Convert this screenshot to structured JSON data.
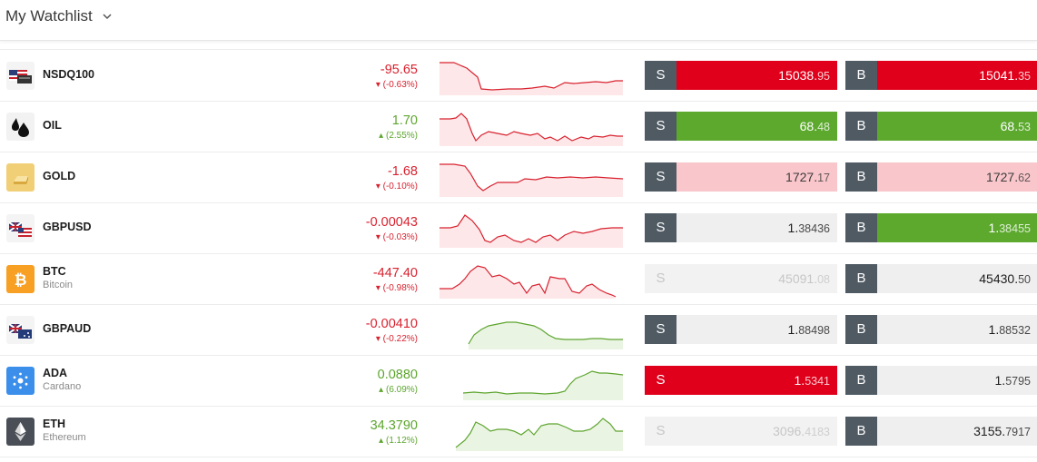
{
  "header": {
    "title": "My Watchlist"
  },
  "rows": [
    {
      "symbol": "NSDQ100",
      "full": "",
      "change": "-95.65",
      "pct": "(-0.63%)",
      "dir": "neg",
      "sell": {
        "label": "S",
        "big": "15038.",
        "small": "95"
      },
      "buy": {
        "label": "B",
        "big": "15041.",
        "small": "35"
      }
    },
    {
      "symbol": "OIL",
      "full": "",
      "change": "1.70",
      "pct": "(2.55%)",
      "dir": "pos",
      "sell": {
        "label": "S",
        "big": "68.",
        "small": "48"
      },
      "buy": {
        "label": "B",
        "big": "68.",
        "small": "53"
      }
    },
    {
      "symbol": "GOLD",
      "full": "",
      "change": "-1.68",
      "pct": "(-0.10%)",
      "dir": "neg",
      "sell": {
        "label": "S",
        "big": "1727.",
        "small": "17"
      },
      "buy": {
        "label": "B",
        "big": "1727.",
        "small": "62"
      }
    },
    {
      "symbol": "GBPUSD",
      "full": "",
      "change": "-0.00043",
      "pct": "(-0.03%)",
      "dir": "neg",
      "sell": {
        "label": "S",
        "big": "1.",
        "small": "38436"
      },
      "buy": {
        "label": "B",
        "big": "1.",
        "small": "38455"
      }
    },
    {
      "symbol": "BTC",
      "full": "Bitcoin",
      "change": "-447.40",
      "pct": "(-0.98%)",
      "dir": "neg",
      "sell": {
        "label": "S",
        "big": "45091.",
        "small": "08"
      },
      "buy": {
        "label": "B",
        "big": "45430.",
        "small": "50"
      }
    },
    {
      "symbol": "GBPAUD",
      "full": "",
      "change": "-0.00410",
      "pct": "(-0.22%)",
      "dir": "neg",
      "sell": {
        "label": "S",
        "big": "1.",
        "small": "88498"
      },
      "buy": {
        "label": "B",
        "big": "1.",
        "small": "88532"
      }
    },
    {
      "symbol": "ADA",
      "full": "Cardano",
      "change": "0.0880",
      "pct": "(6.09%)",
      "dir": "pos",
      "sell": {
        "label": "S",
        "big": "1.",
        "small": "5341"
      },
      "buy": {
        "label": "B",
        "big": "1.",
        "small": "5795"
      }
    },
    {
      "symbol": "ETH",
      "full": "Ethereum",
      "change": "34.3790",
      "pct": "(1.12%)",
      "dir": "pos",
      "sell": {
        "label": "S",
        "big": "3096.",
        "small": "4183"
      },
      "buy": {
        "label": "B",
        "big": "3155.",
        "small": "7917"
      }
    }
  ],
  "icons": [
    "us-flag-icon",
    "oil-drop-icon",
    "gold-bar-icon",
    "uk-us-flag-icon",
    "bitcoin-icon",
    "uk-au-flag-icon",
    "cardano-icon",
    "ethereum-icon"
  ],
  "colors": {
    "negative": "#d8222f",
    "positive": "#5da52f",
    "sell_active": "#e0001b",
    "buy_active": "#5ca92e",
    "label_bg": "#4f5a63"
  }
}
